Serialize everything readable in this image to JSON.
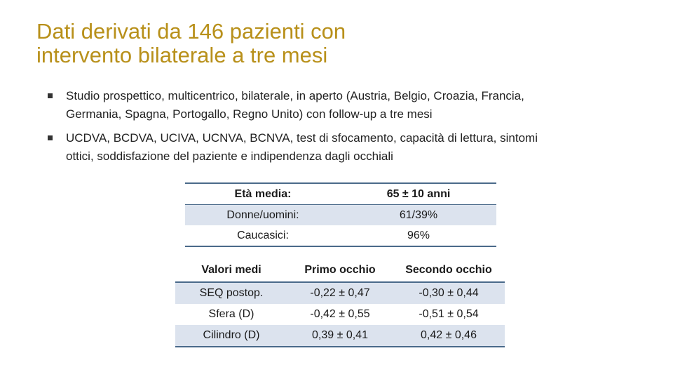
{
  "title": {
    "line1": "Dati derivati da 146 pazienti con",
    "line2": "intervento bilaterale a tre mesi"
  },
  "bullets": [
    "Studio prospettico, multicentrico, bilaterale, in aperto (Austria, Belgio, Croazia, Francia, Germania, Spagna, Portogallo, Regno Unito) con follow-up a tre mesi",
    "UCDVA, BCDVA, UCIVA, UCNVA, BCNVA, test di sfocamento, capacità di lettura, sintomi ottici, soddisfazione del paziente e indipendenza dagli occhiali"
  ],
  "stats": [
    {
      "label": "Età media:",
      "value": "65 ± 10 anni"
    },
    {
      "label": "Donne/uomini:",
      "value": "61/39%"
    },
    {
      "label": "Caucasici:",
      "value": "96%"
    }
  ],
  "results": {
    "headers": [
      "Valori medi",
      "Primo occhio",
      "Secondo occhio"
    ],
    "rows": [
      [
        "SEQ postop.",
        "-0,22 ± 0,47",
        "-0,30 ± 0,44"
      ],
      [
        "Sfera (D)",
        "-0,42 ± 0,55",
        "-0,51 ± 0,54"
      ],
      [
        "Cilindro (D)",
        "0,39 ± 0,41",
        "0,42 ± 0,46"
      ]
    ]
  }
}
